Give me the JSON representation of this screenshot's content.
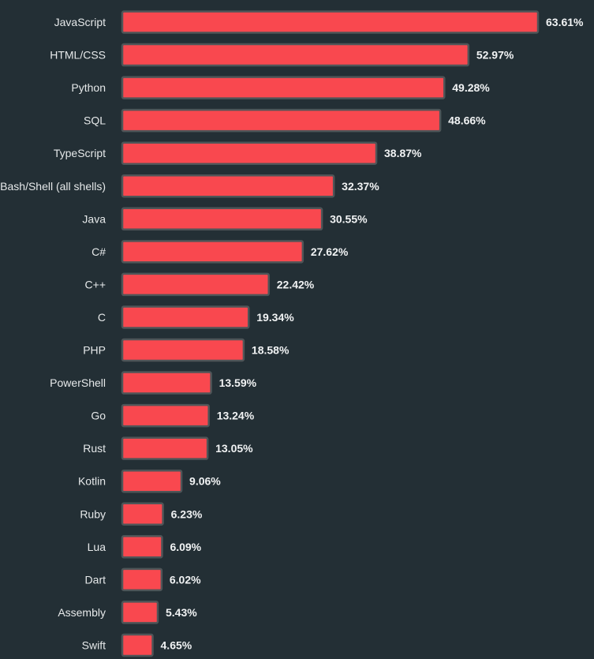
{
  "colors": {
    "background": "#232f35",
    "bar_fill": "#f9484f",
    "bar_stroke": "#4f5558",
    "label_text": "#e6e9ea",
    "value_text": "#f1f3f4"
  },
  "chart_data": {
    "type": "bar",
    "orientation": "horizontal",
    "title": "",
    "xlabel": "",
    "ylabel": "",
    "grid": false,
    "legend": "none",
    "xlim": [
      0,
      63.61
    ],
    "value_suffix": "%",
    "categories": [
      "JavaScript",
      "HTML/CSS",
      "Python",
      "SQL",
      "TypeScript",
      "Bash/Shell (all shells)",
      "Java",
      "C#",
      "C++",
      "C",
      "PHP",
      "PowerShell",
      "Go",
      "Rust",
      "Kotlin",
      "Ruby",
      "Lua",
      "Dart",
      "Assembly",
      "Swift"
    ],
    "values": [
      63.61,
      52.97,
      49.28,
      48.66,
      38.87,
      32.37,
      30.55,
      27.62,
      22.42,
      19.34,
      18.58,
      13.59,
      13.24,
      13.05,
      9.06,
      6.23,
      6.09,
      6.02,
      5.43,
      4.65
    ],
    "value_labels": [
      "63.61%",
      "52.97%",
      "49.28%",
      "48.66%",
      "38.87%",
      "32.37%",
      "30.55%",
      "27.62%",
      "22.42%",
      "19.34%",
      "18.58%",
      "13.59%",
      "13.24%",
      "13.05%",
      "9.06%",
      "6.23%",
      "6.09%",
      "6.02%",
      "5.43%",
      "4.65%"
    ]
  }
}
